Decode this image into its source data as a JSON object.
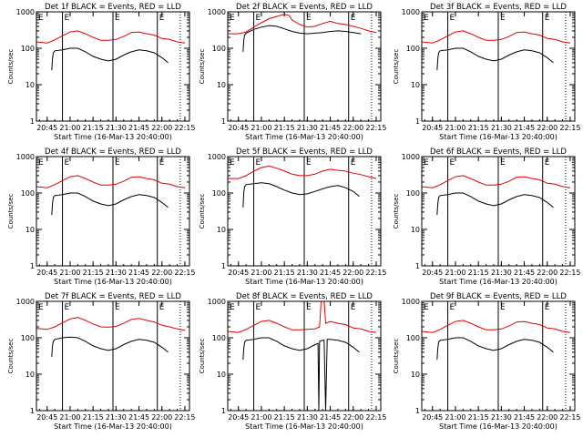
{
  "chart_data": {
    "type": "line",
    "panel_grid": {
      "rows": 3,
      "cols": 3
    },
    "y_scale": "log",
    "ylim": [
      1,
      1000
    ],
    "ytick_values": [
      1,
      10,
      100,
      1000
    ],
    "ytick_labels": [
      "1",
      "10",
      "100",
      "1000"
    ],
    "xlim_minutes": [
      -2,
      98
    ],
    "xtick_values": [
      5,
      20,
      35,
      50,
      65,
      80,
      95
    ],
    "xtick_labels": [
      "20:45",
      "21:00",
      "21:15",
      "21:30",
      "21:45",
      "22:00",
      "22:15"
    ],
    "xlabel": "Start Time (16-Mar-13 20:40:00)",
    "ylabel": "Counts/sec",
    "flag_label": "E",
    "panels": [
      {
        "title": "Det 1f BLACK = Events, RED = LLD",
        "flag_lines": [
          15,
          48,
          77
        ],
        "dotted_line": 92,
        "series": [
          {
            "color": "#e00000",
            "x": [
              -2,
              5,
              10,
              15,
              20,
              25,
              30,
              35,
              40,
              45,
              50,
              55,
              60,
              65,
              70,
              75,
              80,
              85,
              90,
              95
            ],
            "y": [
              150,
              140,
              170,
              220,
              280,
              300,
              250,
              200,
              165,
              165,
              175,
              210,
              270,
              280,
              250,
              230,
              185,
              175,
              150,
              140
            ]
          },
          {
            "color": "#000000",
            "x": [
              8,
              8.5,
              9,
              10,
              15,
              20,
              25,
              30,
              35,
              40,
              45,
              50,
              55,
              60,
              65,
              70,
              75,
              80,
              84
            ],
            "y": [
              25,
              50,
              75,
              85,
              90,
              100,
              100,
              80,
              60,
              50,
              45,
              50,
              65,
              80,
              90,
              85,
              75,
              55,
              40
            ]
          }
        ]
      },
      {
        "title": "Det 2f BLACK = Events, RED = LLD",
        "flag_lines": [
          15,
          48,
          77
        ],
        "dotted_line": 92,
        "series": [
          {
            "color": "#e00000",
            "x": [
              -2,
              5,
              10,
              15,
              20,
              25,
              30,
              35,
              38,
              40,
              45,
              50,
              55,
              60,
              65,
              70,
              75,
              80,
              85,
              90,
              95
            ],
            "y": [
              250,
              250,
              280,
              380,
              500,
              650,
              750,
              850,
              800,
              600,
              450,
              380,
              400,
              480,
              550,
              480,
              450,
              400,
              350,
              300,
              270
            ]
          },
          {
            "color": "#000000",
            "x": [
              8,
              8.5,
              9,
              10,
              15,
              20,
              25,
              30,
              35,
              40,
              45,
              50,
              55,
              60,
              65,
              70,
              75,
              80,
              85
            ],
            "y": [
              80,
              160,
              230,
              260,
              330,
              380,
              420,
              400,
              340,
              290,
              260,
              250,
              260,
              270,
              290,
              300,
              290,
              270,
              250
            ]
          }
        ]
      },
      {
        "title": "Det 3f BLACK = Events, RED = LLD",
        "flag_lines": [
          15,
          48,
          77
        ],
        "dotted_line": 92,
        "series": [
          {
            "color": "#e00000",
            "x": [
              -2,
              5,
              10,
              15,
              20,
              25,
              30,
              35,
              40,
              45,
              50,
              55,
              60,
              65,
              70,
              75,
              80,
              85,
              90,
              95
            ],
            "y": [
              150,
              140,
              170,
              220,
              280,
              300,
              250,
              200,
              165,
              165,
              175,
              210,
              270,
              280,
              250,
              230,
              185,
              175,
              150,
              140
            ]
          },
          {
            "color": "#000000",
            "x": [
              8,
              8.5,
              9,
              10,
              15,
              20,
              25,
              30,
              35,
              40,
              45,
              50,
              55,
              60,
              65,
              70,
              75,
              80,
              84
            ],
            "y": [
              25,
              50,
              75,
              85,
              90,
              100,
              100,
              80,
              60,
              50,
              45,
              50,
              65,
              80,
              90,
              85,
              75,
              55,
              40
            ]
          }
        ]
      },
      {
        "title": "Det 4f BLACK = Events, RED = LLD",
        "flag_lines": [
          15,
          48,
          77
        ],
        "dotted_line": 92,
        "series": [
          {
            "color": "#e00000",
            "x": [
              -2,
              5,
              10,
              15,
              20,
              25,
              30,
              35,
              40,
              45,
              50,
              55,
              60,
              65,
              70,
              75,
              80,
              85,
              90,
              95
            ],
            "y": [
              150,
              140,
              170,
              220,
              280,
              300,
              250,
              200,
              165,
              165,
              175,
              210,
              270,
              280,
              250,
              230,
              185,
              175,
              150,
              140
            ]
          },
          {
            "color": "#000000",
            "x": [
              8,
              8.5,
              9,
              10,
              15,
              20,
              25,
              30,
              35,
              40,
              45,
              50,
              55,
              60,
              65,
              70,
              75,
              80,
              84
            ],
            "y": [
              25,
              50,
              75,
              85,
              90,
              100,
              100,
              80,
              60,
              50,
              45,
              50,
              65,
              80,
              90,
              85,
              75,
              55,
              40
            ]
          }
        ]
      },
      {
        "title": "Det 5f BLACK = Events, RED = LLD",
        "flag_lines": [
          15,
          48,
          77
        ],
        "dotted_line": 92,
        "series": [
          {
            "color": "#e00000",
            "x": [
              -2,
              5,
              10,
              15,
              20,
              25,
              30,
              35,
              40,
              45,
              50,
              55,
              60,
              65,
              70,
              75,
              80,
              85,
              90,
              95
            ],
            "y": [
              250,
              250,
              300,
              400,
              500,
              550,
              480,
              400,
              330,
              300,
              300,
              330,
              400,
              450,
              420,
              400,
              350,
              320,
              280,
              250
            ]
          },
          {
            "color": "#000000",
            "x": [
              8,
              8.5,
              9,
              10,
              15,
              20,
              25,
              30,
              35,
              40,
              45,
              50,
              55,
              60,
              65,
              70,
              75,
              80,
              84
            ],
            "y": [
              40,
              100,
              150,
              170,
              180,
              190,
              180,
              150,
              120,
              100,
              90,
              95,
              110,
              130,
              150,
              160,
              140,
              110,
              80
            ]
          }
        ]
      },
      {
        "title": "Det 6f BLACK = Events, RED = LLD",
        "flag_lines": [
          15,
          48,
          77
        ],
        "dotted_line": 92,
        "series": [
          {
            "color": "#e00000",
            "x": [
              -2,
              5,
              10,
              15,
              20,
              25,
              30,
              35,
              40,
              45,
              50,
              55,
              60,
              65,
              70,
              75,
              80,
              85,
              90,
              95
            ],
            "y": [
              150,
              140,
              170,
              220,
              280,
              300,
              250,
              200,
              165,
              165,
              175,
              210,
              270,
              280,
              250,
              230,
              185,
              175,
              150,
              140
            ]
          },
          {
            "color": "#000000",
            "x": [
              8,
              8.5,
              9,
              10,
              15,
              20,
              25,
              30,
              35,
              40,
              45,
              50,
              55,
              60,
              65,
              70,
              75,
              80,
              84
            ],
            "y": [
              25,
              50,
              75,
              85,
              90,
              100,
              100,
              80,
              60,
              50,
              45,
              50,
              65,
              80,
              90,
              85,
              75,
              55,
              40
            ]
          }
        ]
      },
      {
        "title": "Det 7f BLACK = Events, RED = LLD",
        "flag_lines": [
          15,
          48,
          77
        ],
        "dotted_line": 92,
        "series": [
          {
            "color": "#e00000",
            "x": [
              -2,
              5,
              10,
              15,
              20,
              25,
              30,
              35,
              40,
              45,
              50,
              55,
              60,
              65,
              70,
              75,
              80,
              85,
              90,
              95
            ],
            "y": [
              180,
              170,
              200,
              260,
              330,
              360,
              300,
              240,
              200,
              195,
              205,
              250,
              320,
              340,
              300,
              270,
              220,
              200,
              175,
              160
            ]
          },
          {
            "color": "#000000",
            "x": [
              8,
              8.5,
              9,
              10,
              15,
              20,
              25,
              30,
              35,
              40,
              45,
              50,
              55,
              60,
              65,
              70,
              75,
              80,
              84
            ],
            "y": [
              30,
              60,
              80,
              90,
              100,
              105,
              100,
              80,
              60,
              50,
              45,
              50,
              65,
              80,
              90,
              85,
              75,
              55,
              40
            ]
          }
        ]
      },
      {
        "title": "Det 8f BLACK = Events, RED = LLD",
        "flag_lines": [
          15,
          48,
          77
        ],
        "dotted_line": 92,
        "series": [
          {
            "color": "#e00000",
            "x": [
              -2,
              5,
              10,
              15,
              20,
              25,
              30,
              35,
              40,
              45,
              55,
              58,
              59,
              61,
              62,
              65,
              70,
              75,
              80,
              85,
              90,
              95
            ],
            "y": [
              150,
              140,
              170,
              220,
              280,
              300,
              250,
              200,
              165,
              165,
              175,
              200,
              1000,
              1000,
              250,
              280,
              250,
              230,
              185,
              175,
              150,
              140
            ]
          },
          {
            "color": "#000000",
            "x": [
              8,
              8.5,
              9,
              10,
              15,
              20,
              25,
              30,
              35,
              40,
              45,
              50,
              55,
              57,
              57.5,
              58,
              60,
              61,
              62,
              63,
              65,
              70,
              75,
              80,
              84
            ],
            "y": [
              25,
              50,
              75,
              85,
              90,
              100,
              100,
              80,
              60,
              50,
              45,
              50,
              65,
              70,
              1,
              80,
              85,
              85,
              1,
              90,
              90,
              85,
              75,
              55,
              40
            ]
          }
        ]
      },
      {
        "title": "Det 9f BLACK = Events, RED = LLD",
        "flag_lines": [
          15,
          48,
          77
        ],
        "dotted_line": 92,
        "series": [
          {
            "color": "#e00000",
            "x": [
              -2,
              5,
              10,
              15,
              20,
              25,
              30,
              35,
              40,
              45,
              50,
              55,
              60,
              65,
              70,
              75,
              80,
              85,
              90,
              95
            ],
            "y": [
              150,
              140,
              170,
              220,
              280,
              300,
              250,
              200,
              165,
              165,
              175,
              210,
              270,
              280,
              250,
              230,
              185,
              175,
              150,
              140
            ]
          },
          {
            "color": "#000000",
            "x": [
              8,
              8.5,
              9,
              10,
              15,
              20,
              25,
              30,
              35,
              40,
              45,
              50,
              55,
              60,
              65,
              70,
              75,
              80,
              84
            ],
            "y": [
              25,
              50,
              75,
              85,
              90,
              100,
              100,
              80,
              60,
              50,
              45,
              50,
              65,
              80,
              90,
              85,
              75,
              55,
              40
            ]
          }
        ]
      }
    ]
  }
}
